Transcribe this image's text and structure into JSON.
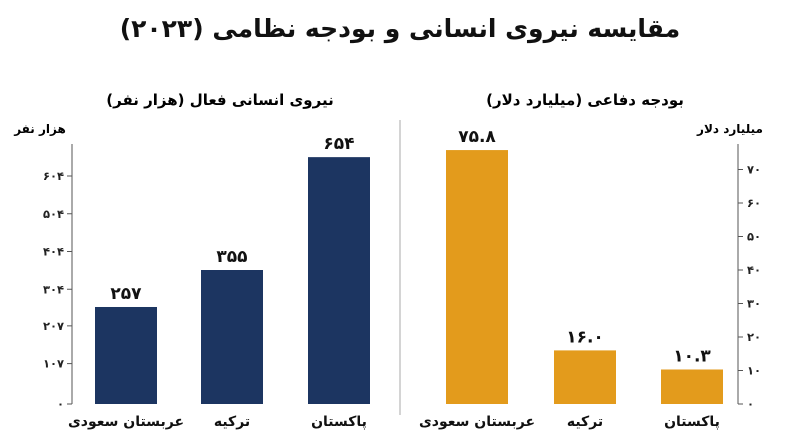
{
  "title": "مقایسه نیروی انسانی و بودجه نظامی (۲۰۲۳)",
  "chart_data": [
    {
      "type": "bar",
      "title": "نیروی انسانی فعال (هزار نفر)",
      "ylabel": "هزار نفر",
      "categories": [
        "عربستان سعودی",
        "ترکیه",
        "پاکستان"
      ],
      "values": [
        257,
        355,
        654
      ],
      "value_labels": [
        "۲۵۷",
        "۳۵۵",
        "۶۵۴"
      ],
      "ylim": [
        0,
        710
      ],
      "yticks": [
        0,
        107,
        207,
        304,
        404,
        504,
        604
      ],
      "ytick_labels": [
        "۰",
        "۱۰۷",
        "۲۰۷",
        "۳۰۴",
        "۴۰۴",
        "۵۰۴",
        "۶۰۴"
      ],
      "axis_side": "left",
      "grid": false,
      "color": "#1c3561"
    },
    {
      "type": "bar",
      "title": "بودجه دفاعی (میلیارد دلار)",
      "ylabel": "میلیارد دلار",
      "categories": [
        "عربستان سعودی",
        "ترکیه",
        "پاکستان"
      ],
      "values": [
        75.8,
        16.0,
        10.3
      ],
      "value_labels": [
        "۷۵.۸",
        "۱۶.۰",
        "۱۰.۳"
      ],
      "ylim": [
        0,
        80
      ],
      "yticks": [
        0,
        10,
        20,
        30,
        40,
        50,
        60,
        70
      ],
      "ytick_labels": [
        "۰",
        "۱۰",
        "۲۰",
        "۳۰",
        "۴۰",
        "۵۰",
        "۶۰",
        "۷۰"
      ],
      "axis_side": "right",
      "grid": false,
      "color": "#e39b1c"
    }
  ]
}
